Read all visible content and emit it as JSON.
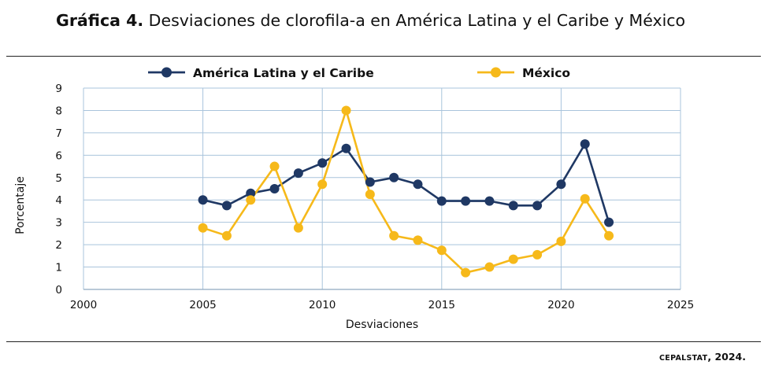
{
  "title": {
    "bold": "Gráfica 4.",
    "text": "Desviaciones de clorofila-a en América Latina y el Caribe y México"
  },
  "source": {
    "smallcaps": "CEPALSTAT",
    "rest": ", 2024."
  },
  "chart_data": {
    "type": "line",
    "xlabel": "Desviaciones",
    "ylabel": "Porcentaje",
    "xlim": [
      2000,
      2025
    ],
    "ylim": [
      0,
      9
    ],
    "xticks": [
      2000,
      2005,
      2010,
      2015,
      2020,
      2025
    ],
    "yticks": [
      0,
      1,
      2,
      3,
      4,
      5,
      6,
      7,
      8,
      9
    ],
    "grid": true,
    "legend_position": "top",
    "x": [
      2005,
      2006,
      2007,
      2008,
      2009,
      2010,
      2011,
      2012,
      2013,
      2014,
      2015,
      2016,
      2017,
      2018,
      2019,
      2020,
      2021,
      2022
    ],
    "series": [
      {
        "name": "América Latina y el Caribe",
        "color": "#1f3864",
        "values": [
          4.0,
          3.75,
          4.3,
          4.5,
          5.2,
          5.65,
          6.3,
          4.8,
          5.0,
          4.7,
          3.95,
          3.95,
          3.95,
          3.75,
          3.75,
          4.7,
          6.5,
          3.0
        ]
      },
      {
        "name": "México",
        "color": "#f6b91a",
        "values": [
          2.75,
          2.4,
          4.0,
          5.5,
          2.75,
          4.7,
          8.0,
          4.25,
          2.4,
          2.2,
          1.75,
          0.75,
          1.0,
          1.35,
          1.55,
          2.15,
          4.05,
          2.4
        ]
      }
    ]
  }
}
